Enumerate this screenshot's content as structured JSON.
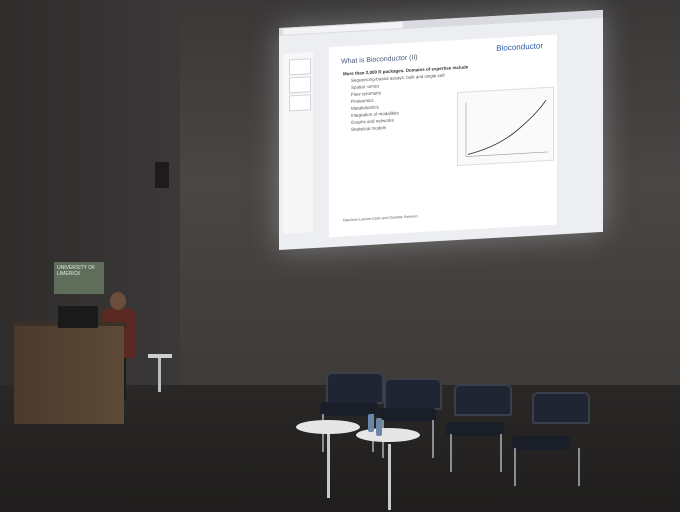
{
  "slide": {
    "title": "What is Bioconductor (II)",
    "logo": "Bioconductor",
    "bullets": [
      {
        "text": "More than 2,000 R packages. Domains of expertise include",
        "level": "main"
      },
      {
        "text": "Sequencing-based assays: bulk and single-cell",
        "level": "sub"
      },
      {
        "text": "Spatial -omics",
        "level": "sub"
      },
      {
        "text": "Flow cytometry",
        "level": "sub"
      },
      {
        "text": "Proteomics",
        "level": "sub"
      },
      {
        "text": "Metabolomics",
        "level": "sub"
      },
      {
        "text": "Integration of modalities",
        "level": "sub"
      },
      {
        "text": "Graphs and networks",
        "level": "sub"
      },
      {
        "text": "Statistical models",
        "level": "sub"
      }
    ],
    "footnote": "Data from Laurent Gatto and Charlotte Soneson"
  },
  "sign": {
    "line1": "UNIVERSITY OF",
    "line2": "LIMERICK"
  },
  "colors": {
    "screen": "#eceef1",
    "wall": "#4a4644",
    "floor": "#1f1e1d",
    "chair": "#1f2533",
    "podium": "#5d4a37"
  }
}
